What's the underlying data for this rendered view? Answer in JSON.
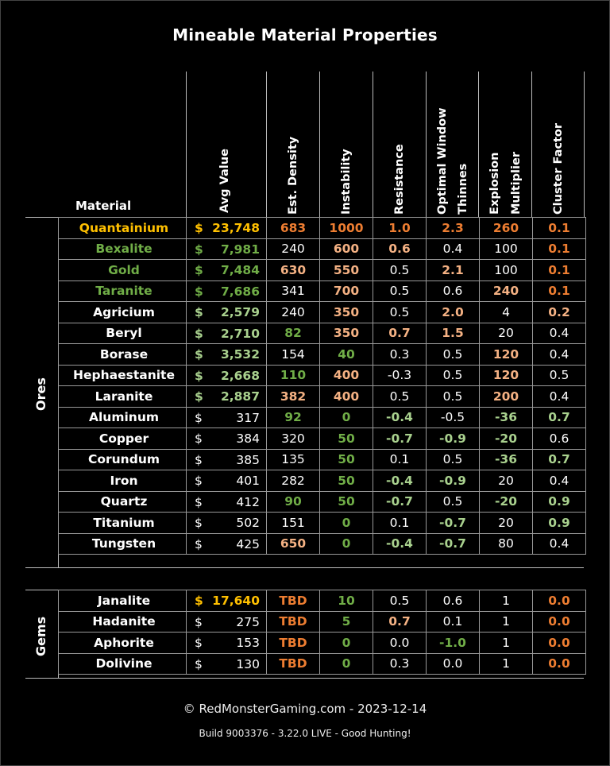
{
  "title": "Mineable Material Properties",
  "headers": {
    "material": "Material",
    "avg_value": "Avg Value",
    "est_density": "Est. Density",
    "instability": "Instability",
    "resistance": "Resistance",
    "optimal_window_1": "Optimal Window",
    "optimal_window_2": "Thinnes",
    "explosion_1": "Explosion",
    "explosion_2": "Multiplier",
    "cluster_factor": "Cluster Factor"
  },
  "colors": {
    "gold": "#FFC000",
    "orange": "#ED7D31",
    "peach": "#F4B183",
    "green": "#70AD47",
    "light_green": "#A9D18E",
    "white": "#FFFFFF"
  },
  "groups": {
    "ores": {
      "label": "Ores",
      "rows": [
        {
          "name": "Quantainium",
          "name_c": "gold",
          "dollar": "$",
          "value": "23,748",
          "value_c": "gold",
          "cells": [
            [
              "683",
              "orange"
            ],
            [
              "1000",
              "orange"
            ],
            [
              "1.0",
              "orange"
            ],
            [
              "2.3",
              "orange"
            ],
            [
              "260",
              "orange"
            ],
            [
              "0.1",
              "orange"
            ]
          ]
        },
        {
          "name": "Bexalite",
          "name_c": "green",
          "dollar": "$",
          "value": "7,981",
          "value_c": "green",
          "cells": [
            [
              "240",
              "white"
            ],
            [
              "600",
              "peach"
            ],
            [
              "0.6",
              "peach"
            ],
            [
              "0.4",
              "white"
            ],
            [
              "100",
              "white"
            ],
            [
              "0.1",
              "orange"
            ]
          ]
        },
        {
          "name": "Gold",
          "name_c": "green",
          "dollar": "$",
          "value": "7,484",
          "value_c": "green",
          "cells": [
            [
              "630",
              "peach"
            ],
            [
              "550",
              "peach"
            ],
            [
              "0.5",
              "white"
            ],
            [
              "2.1",
              "peach"
            ],
            [
              "100",
              "white"
            ],
            [
              "0.1",
              "orange"
            ]
          ]
        },
        {
          "name": "Taranite",
          "name_c": "green",
          "dollar": "$",
          "value": "7,686",
          "value_c": "green",
          "cells": [
            [
              "341",
              "white"
            ],
            [
              "700",
              "peach"
            ],
            [
              "0.5",
              "white"
            ],
            [
              "0.6",
              "white"
            ],
            [
              "240",
              "peach"
            ],
            [
              "0.1",
              "orange"
            ]
          ]
        },
        {
          "name": "Agricium",
          "name_c": "white_b",
          "dollar": "$",
          "value": "2,579",
          "value_c": "lgreen",
          "cells": [
            [
              "240",
              "white"
            ],
            [
              "350",
              "peach"
            ],
            [
              "0.5",
              "white"
            ],
            [
              "2.0",
              "peach"
            ],
            [
              "4",
              "white"
            ],
            [
              "0.2",
              "peach"
            ]
          ]
        },
        {
          "name": "Beryl",
          "name_c": "white_b",
          "dollar": "$",
          "value": "2,710",
          "value_c": "lgreen",
          "cells": [
            [
              "82",
              "green"
            ],
            [
              "350",
              "peach"
            ],
            [
              "0.7",
              "peach"
            ],
            [
              "1.5",
              "peach"
            ],
            [
              "20",
              "white"
            ],
            [
              "0.4",
              "white"
            ]
          ]
        },
        {
          "name": "Borase",
          "name_c": "white_b",
          "dollar": "$",
          "value": "3,532",
          "value_c": "lgreen",
          "cells": [
            [
              "154",
              "white"
            ],
            [
              "40",
              "green"
            ],
            [
              "0.3",
              "white"
            ],
            [
              "0.5",
              "white"
            ],
            [
              "120",
              "peach"
            ],
            [
              "0.4",
              "white"
            ]
          ]
        },
        {
          "name": "Hephaestanite",
          "name_c": "white_b",
          "dollar": "$",
          "value": "2,668",
          "value_c": "lgreen",
          "cells": [
            [
              "110",
              "green"
            ],
            [
              "400",
              "peach"
            ],
            [
              "-0.3",
              "white"
            ],
            [
              "0.5",
              "white"
            ],
            [
              "120",
              "peach"
            ],
            [
              "0.5",
              "white"
            ]
          ]
        },
        {
          "name": "Laranite",
          "name_c": "white_b",
          "dollar": "$",
          "value": "2,887",
          "value_c": "lgreen",
          "cells": [
            [
              "382",
              "peach"
            ],
            [
              "400",
              "peach"
            ],
            [
              "0.5",
              "white"
            ],
            [
              "0.5",
              "white"
            ],
            [
              "200",
              "peach"
            ],
            [
              "0.4",
              "white"
            ]
          ]
        },
        {
          "name": "Aluminum",
          "name_c": "white_b",
          "dollar": "$",
          "value": "317",
          "value_c": "white",
          "cells": [
            [
              "92",
              "green"
            ],
            [
              "0",
              "green"
            ],
            [
              "-0.4",
              "lgreen"
            ],
            [
              "-0.5",
              "white"
            ],
            [
              "-36",
              "lgreen"
            ],
            [
              "0.7",
              "lgreen"
            ]
          ]
        },
        {
          "name": "Copper",
          "name_c": "white_b",
          "dollar": "$",
          "value": "384",
          "value_c": "white",
          "cells": [
            [
              "320",
              "white"
            ],
            [
              "50",
              "green"
            ],
            [
              "-0.7",
              "lgreen"
            ],
            [
              "-0.9",
              "lgreen"
            ],
            [
              "-20",
              "lgreen"
            ],
            [
              "0.6",
              "white"
            ]
          ]
        },
        {
          "name": "Corundum",
          "name_c": "white_b",
          "dollar": "$",
          "value": "385",
          "value_c": "white",
          "cells": [
            [
              "135",
              "white"
            ],
            [
              "50",
              "green"
            ],
            [
              "0.1",
              "white"
            ],
            [
              "0.5",
              "white"
            ],
            [
              "-36",
              "lgreen"
            ],
            [
              "0.7",
              "lgreen"
            ]
          ]
        },
        {
          "name": "Iron",
          "name_c": "white_b",
          "dollar": "$",
          "value": "401",
          "value_c": "white",
          "cells": [
            [
              "282",
              "white"
            ],
            [
              "50",
              "green"
            ],
            [
              "-0.4",
              "lgreen"
            ],
            [
              "-0.9",
              "lgreen"
            ],
            [
              "20",
              "white"
            ],
            [
              "0.4",
              "white"
            ]
          ]
        },
        {
          "name": "Quartz",
          "name_c": "white_b",
          "dollar": "$",
          "value": "412",
          "value_c": "white",
          "cells": [
            [
              "90",
              "green"
            ],
            [
              "50",
              "green"
            ],
            [
              "-0.7",
              "lgreen"
            ],
            [
              "0.5",
              "white"
            ],
            [
              "-20",
              "lgreen"
            ],
            [
              "0.9",
              "lgreen"
            ]
          ]
        },
        {
          "name": "Titanium",
          "name_c": "white_b",
          "dollar": "$",
          "value": "502",
          "value_c": "white",
          "cells": [
            [
              "151",
              "white"
            ],
            [
              "0",
              "green"
            ],
            [
              "0.1",
              "white"
            ],
            [
              "-0.7",
              "lgreen"
            ],
            [
              "20",
              "white"
            ],
            [
              "0.9",
              "lgreen"
            ]
          ]
        },
        {
          "name": "Tungsten",
          "name_c": "white_b",
          "dollar": "$",
          "value": "425",
          "value_c": "white",
          "cells": [
            [
              "650",
              "peach"
            ],
            [
              "0",
              "green"
            ],
            [
              "-0.4",
              "lgreen"
            ],
            [
              "-0.7",
              "lgreen"
            ],
            [
              "80",
              "white"
            ],
            [
              "0.4",
              "white"
            ]
          ]
        }
      ]
    },
    "gems": {
      "label": "Gems",
      "rows": [
        {
          "name": "Janalite",
          "name_c": "white_b",
          "dollar": "$",
          "value": "17,640",
          "value_c": "gold",
          "cells": [
            [
              "TBD",
              "orange"
            ],
            [
              "10",
              "green"
            ],
            [
              "0.5",
              "white"
            ],
            [
              "0.6",
              "white"
            ],
            [
              "1",
              "white"
            ],
            [
              "0.0",
              "orange"
            ]
          ]
        },
        {
          "name": "Hadanite",
          "name_c": "white_b",
          "dollar": "$",
          "value": "275",
          "value_c": "white",
          "cells": [
            [
              "TBD",
              "orange"
            ],
            [
              "5",
              "green"
            ],
            [
              "0.7",
              "peach"
            ],
            [
              "0.1",
              "white"
            ],
            [
              "1",
              "white"
            ],
            [
              "0.0",
              "orange"
            ]
          ]
        },
        {
          "name": "Aphorite",
          "name_c": "white_b",
          "dollar": "$",
          "value": "153",
          "value_c": "white",
          "cells": [
            [
              "TBD",
              "orange"
            ],
            [
              "0",
              "green"
            ],
            [
              "0.0",
              "white"
            ],
            [
              "-1.0",
              "green"
            ],
            [
              "1",
              "white"
            ],
            [
              "0.0",
              "orange"
            ]
          ]
        },
        {
          "name": "Dolivine",
          "name_c": "white_b",
          "dollar": "$",
          "value": "130",
          "value_c": "white",
          "cells": [
            [
              "TBD",
              "orange"
            ],
            [
              "0",
              "green"
            ],
            [
              "0.3",
              "white"
            ],
            [
              "0.0",
              "white"
            ],
            [
              "1",
              "white"
            ],
            [
              "0.0",
              "orange"
            ]
          ]
        }
      ]
    }
  },
  "footer": {
    "copyright": "© RedMonsterGaming.com - 2023-12-14",
    "build": "Build 9003376 - 3.22.0 LIVE - Good Hunting!"
  }
}
